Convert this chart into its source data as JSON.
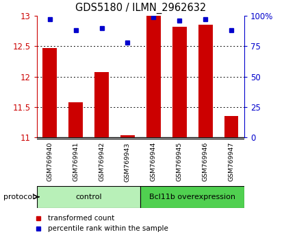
{
  "title": "GDS5180 / ILMN_2962632",
  "samples": [
    "GSM769940",
    "GSM769941",
    "GSM769942",
    "GSM769943",
    "GSM769944",
    "GSM769945",
    "GSM769946",
    "GSM769947"
  ],
  "red_values": [
    12.47,
    11.58,
    12.07,
    11.03,
    13.0,
    12.82,
    12.85,
    11.35
  ],
  "blue_values": [
    97,
    88,
    90,
    78,
    99,
    96,
    97,
    88
  ],
  "ylim_left": [
    11,
    13
  ],
  "ylim_right": [
    0,
    100
  ],
  "yticks_left": [
    11,
    11.5,
    12,
    12.5,
    13
  ],
  "yticks_right": [
    0,
    25,
    50,
    75,
    100
  ],
  "ytick_labels_right": [
    "0",
    "25",
    "50",
    "75",
    "100%"
  ],
  "groups": [
    {
      "label": "control",
      "start": 0,
      "end": 3,
      "color": "#b8f0b8"
    },
    {
      "label": "Bcl11b overexpression",
      "start": 4,
      "end": 7,
      "color": "#50d050"
    }
  ],
  "group_label": "protocol",
  "legend_red": "transformed count",
  "legend_blue": "percentile rank within the sample",
  "bar_color": "#cc0000",
  "dot_color": "#0000cc",
  "bar_width": 0.55,
  "background_color": "#ffffff",
  "sample_bg_color": "#c8c8c8"
}
